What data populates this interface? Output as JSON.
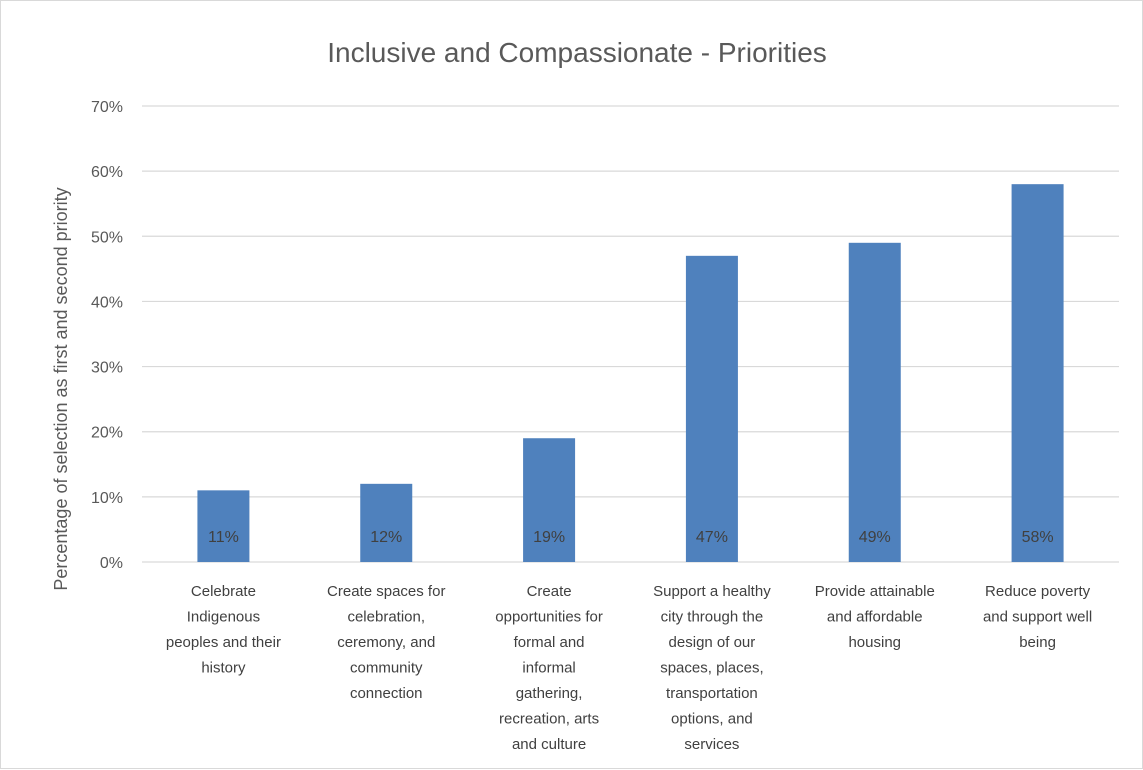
{
  "colors": {
    "bar": "#4f81bd",
    "grid": "#d9d9d9",
    "text": "#595959"
  },
  "chart_data": {
    "type": "bar",
    "title": "Inclusive and Compassionate - Priorities",
    "xlabel": "",
    "ylabel": "Percentage of selection as first and second priority",
    "ylim": [
      0,
      0.7
    ],
    "yticks": [
      "0%",
      "10%",
      "20%",
      "30%",
      "40%",
      "50%",
      "60%",
      "70%"
    ],
    "grid": true,
    "legend": "none",
    "categories": [
      [
        "Celebrate",
        "Indigenous",
        "peoples and their",
        "history"
      ],
      [
        "Create spaces for",
        "celebration,",
        "ceremony, and",
        "community",
        "connection"
      ],
      [
        "Create",
        "opportunities for",
        "formal and",
        "informal",
        "gathering,",
        "recreation, arts",
        "and culture"
      ],
      [
        "Support a healthy",
        "city through the",
        "design of our",
        "spaces, places,",
        "transportation",
        "options, and",
        "services"
      ],
      [
        "Provide attainable",
        "and affordable",
        "housing"
      ],
      [
        "Reduce poverty",
        "and support well",
        "being"
      ]
    ],
    "values": [
      0.11,
      0.12,
      0.19,
      0.47,
      0.49,
      0.58
    ],
    "data_labels": [
      "11%",
      "12%",
      "19%",
      "47%",
      "49%",
      "58%"
    ]
  }
}
